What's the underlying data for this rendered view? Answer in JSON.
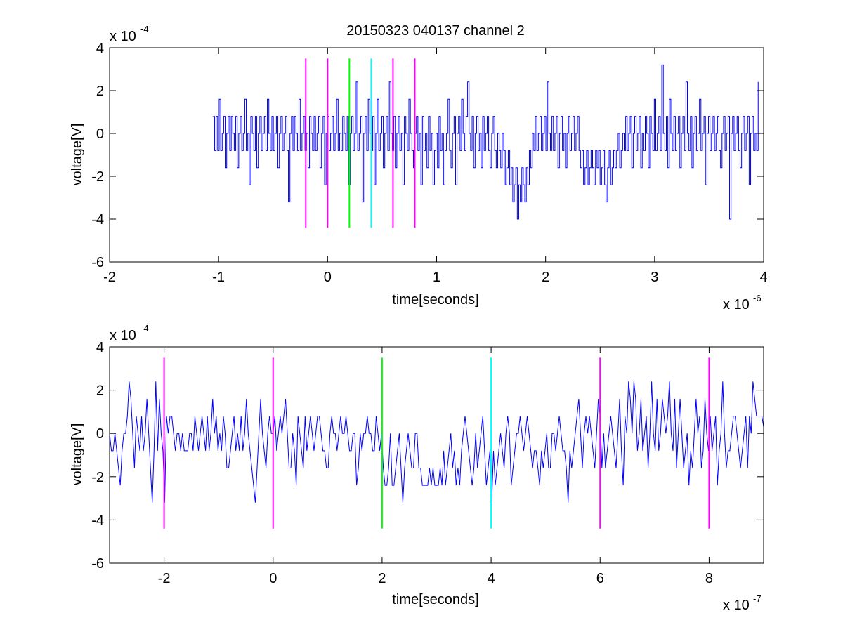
{
  "figure": {
    "title": "20150323 040137 channel 2"
  },
  "colors": {
    "trace": "#0000ff",
    "axes": "#000000",
    "magenta": "#ff00ff",
    "green": "#00ff00",
    "cyan": "#00ffff",
    "background": "#ffffff"
  },
  "chart_data": [
    {
      "type": "line",
      "title": "20150323 040137 channel 2",
      "xlabel": "time[seconds]",
      "ylabel": "voltage[V]",
      "x_exponent_label": "x 10",
      "x_exponent": "-6",
      "y_exponent_label": "x 10",
      "y_exponent": "-4",
      "x_unit_scale": 1e-06,
      "y_unit_scale": 0.0001,
      "xlim": [
        -2,
        4
      ],
      "ylim": [
        -6,
        4
      ],
      "xticks": [
        -2,
        -1,
        0,
        1,
        2,
        3,
        4
      ],
      "xtick_labels": [
        "-2",
        "-1",
        "0",
        "1",
        "2",
        "3",
        "4"
      ],
      "yticks": [
        -6,
        -4,
        -2,
        0,
        2,
        4
      ],
      "ytick_labels": [
        "-6",
        "-4",
        "-2",
        "0",
        "2",
        "4"
      ],
      "grid": false,
      "signal_x_range": [
        -1.05,
        3.95
      ],
      "markers": [
        {
          "x": -0.2,
          "color": "magenta",
          "ymin": -4.4,
          "ymax": 3.5
        },
        {
          "x": 0.0,
          "color": "magenta",
          "ymin": -4.4,
          "ymax": 3.5
        },
        {
          "x": 0.2,
          "color": "green",
          "ymin": -4.4,
          "ymax": 3.5
        },
        {
          "x": 0.4,
          "color": "cyan",
          "ymin": -4.4,
          "ymax": 3.5
        },
        {
          "x": 0.6,
          "color": "magenta",
          "ymin": -4.4,
          "ymax": 3.5
        },
        {
          "x": 0.8,
          "color": "magenta",
          "ymin": -4.4,
          "ymax": 3.5
        }
      ],
      "series": [
        {
          "x_start": -1.05,
          "x_end": 3.95,
          "values": [
            0.8,
            -0.8,
            0.8,
            -0.8,
            1.6,
            -0.8,
            0,
            0.8,
            -1.6,
            0,
            0.8,
            -0.8,
            0.8,
            0,
            -0.8,
            0.8,
            -1.6,
            0,
            0.8,
            -0.8,
            0,
            1.6,
            -0.8,
            0,
            -2.4,
            0.8,
            0,
            -0.8,
            0.8,
            -1.6,
            0,
            0.8,
            -0.8,
            0,
            0.8,
            -0.8,
            1.6,
            0,
            -0.8,
            0.8,
            -0.8,
            0,
            0.8,
            -1.6,
            0,
            0.8,
            -0.8,
            0,
            0.8,
            -0.8,
            -3.2,
            0,
            0.8,
            -0.8,
            0.8,
            0,
            -0.8,
            1.6,
            -0.8,
            0,
            0.8,
            -0.8,
            0,
            -1.6,
            0.8,
            0,
            -0.8,
            0.8,
            -0.8,
            0,
            0.8,
            -1.6,
            0,
            0.8,
            -2.4,
            0,
            0.8,
            -0.8,
            0,
            0.8,
            -0.8,
            0,
            1.6,
            -0.8,
            0,
            -0.8,
            0.8,
            0,
            -0.8,
            0.8,
            -2.4,
            0,
            0.8,
            -0.8,
            0,
            2.4,
            -0.8,
            0,
            0.8,
            -3.2,
            0,
            0.8,
            -0.8,
            1.6,
            0,
            -0.8,
            0.8,
            -2.4,
            0,
            1.6,
            -0.8,
            0,
            0.8,
            -1.6,
            0,
            0.8,
            -0.8,
            2.4,
            0,
            -0.8,
            0.8,
            -1.6,
            0,
            0.8,
            -0.8,
            0,
            -2.4,
            0.8,
            0,
            -0.8,
            1.6,
            0,
            -0.8,
            -1.6,
            0,
            0.8,
            -0.8,
            0,
            -2.4,
            0.8,
            -0.8,
            0,
            -1.6,
            0.8,
            -0.8,
            0,
            -2.4,
            -0.8,
            0,
            -1.6,
            0.8,
            -0.8,
            0,
            -2.4,
            -0.8,
            0,
            1.6,
            -0.8,
            -1.6,
            0,
            0.8,
            -2.4,
            0,
            0.8,
            -0.8,
            1.6,
            0,
            -0.8,
            0.8,
            2.4,
            0,
            -0.8,
            0.8,
            -1.6,
            0,
            0.8,
            -0.8,
            0,
            -1.6,
            0.8,
            -0.8,
            0,
            0.8,
            -0.8,
            -1.6,
            0,
            0.8,
            -0.8,
            -1.6,
            0,
            -0.8,
            -1.6,
            0,
            -0.8,
            -2.4,
            -1.6,
            -0.8,
            -2.4,
            -1.6,
            -3.2,
            -2.4,
            -1.6,
            -4.0,
            -2.4,
            -3.2,
            -1.6,
            -2.4,
            -3.2,
            -1.6,
            -2.4,
            -0.8,
            -1.6,
            0,
            -0.8,
            0.8,
            -0.8,
            0,
            0.8,
            -0.8,
            0,
            0.8,
            -0.8,
            2.4,
            0,
            -0.8,
            0.8,
            -0.8,
            0,
            0.8,
            -1.6,
            0,
            0.8,
            -0.8,
            0,
            -1.6,
            0,
            0.8,
            -0.8,
            0,
            0.8,
            -0.8,
            0,
            0.8,
            -0.8,
            -1.6,
            -0.8,
            -2.4,
            -1.6,
            -0.8,
            -2.4,
            -1.6,
            -0.8,
            -1.6,
            -2.4,
            -0.8,
            -1.6,
            -0.8,
            -2.4,
            -1.6,
            -0.8,
            -2.4,
            -3.2,
            -1.6,
            -0.8,
            -2.4,
            -1.6,
            -0.8,
            -1.6,
            -0.8,
            0,
            -1.6,
            -0.8,
            0,
            -0.8,
            0.8,
            -0.8,
            0,
            0.8,
            -1.6,
            0,
            0.8,
            -0.8,
            0,
            0.8,
            -1.6,
            0,
            -0.8,
            0.8,
            0,
            -1.6,
            0.8,
            0,
            -0.8,
            1.6,
            -0.8,
            0,
            0.8,
            -0.8,
            3.2,
            0,
            -0.8,
            0.8,
            -1.6,
            1.6,
            0,
            -0.8,
            0.8,
            -0.8,
            0,
            0.8,
            -1.6,
            0,
            0.8,
            -0.8,
            2.4,
            0,
            -0.8,
            0.8,
            -1.6,
            0,
            0.8,
            -0.8,
            0,
            1.6,
            -0.8,
            0,
            0.8,
            -2.4,
            0,
            0.8,
            -0.8,
            0,
            0.8,
            -0.8,
            0,
            0.8,
            -0.8,
            -1.6,
            0,
            0.8,
            -0.8,
            0,
            0.8,
            -4.0,
            0,
            0.8,
            -0.8,
            0,
            0.8,
            -0.8,
            -1.6,
            0,
            0.8,
            -0.8,
            0,
            0.8,
            -2.4,
            0,
            0.8,
            -0.8,
            0,
            -0.8,
            2.4
          ]
        }
      ]
    },
    {
      "type": "line",
      "title": "",
      "xlabel": "time[seconds]",
      "ylabel": "voltage[V]",
      "x_exponent_label": "x 10",
      "x_exponent": "-7",
      "y_exponent_label": "x 10",
      "y_exponent": "-4",
      "x_unit_scale": 1e-07,
      "y_unit_scale": 0.0001,
      "xlim": [
        -3,
        9
      ],
      "ylim": [
        -6,
        4
      ],
      "xticks": [
        -2,
        0,
        2,
        4,
        6,
        8
      ],
      "xtick_labels": [
        "-2",
        "0",
        "2",
        "4",
        "6",
        "8"
      ],
      "yticks": [
        -6,
        -4,
        -2,
        0,
        2,
        4
      ],
      "ytick_labels": [
        "-6",
        "-4",
        "-2",
        "0",
        "2",
        "4"
      ],
      "grid": false,
      "signal_x_range": [
        -3,
        9
      ],
      "markers": [
        {
          "x": -2,
          "color": "magenta",
          "ymin": -4.4,
          "ymax": 3.5
        },
        {
          "x": 0,
          "color": "magenta",
          "ymin": -4.4,
          "ymax": 3.5
        },
        {
          "x": 2,
          "color": "green",
          "ymin": -4.4,
          "ymax": 3.5
        },
        {
          "x": 4,
          "color": "cyan",
          "ymin": -4.4,
          "ymax": 3.5
        },
        {
          "x": 6,
          "color": "magenta",
          "ymin": -4.4,
          "ymax": 3.5
        },
        {
          "x": 8,
          "color": "magenta",
          "ymin": -4.4,
          "ymax": 3.5
        }
      ],
      "series": [
        {
          "x_start": -3,
          "x_end": 9,
          "values": [
            0,
            -0.8,
            -0.8,
            0,
            -0.8,
            -1.6,
            -2.4,
            -0.8,
            0,
            0,
            0.8,
            2.4,
            1.6,
            0,
            -1.6,
            0.8,
            0,
            -0.8,
            0.8,
            -0.8,
            0,
            1.6,
            0,
            -1.6,
            -3.2,
            -0.8,
            2.4,
            -0.8,
            1.6,
            0,
            -0.8,
            -3.2,
            0.8,
            0,
            0.8,
            0.8,
            0,
            -0.8,
            0,
            0,
            -0.8,
            0,
            -0.8,
            -0.8,
            -0.8,
            0,
            0,
            -0.8,
            0.8,
            0,
            -0.8,
            0,
            0.8,
            0,
            -0.8,
            0.8,
            -0.8,
            0,
            1.6,
            0,
            0.8,
            -0.8,
            0,
            -0.8,
            0.8,
            0,
            -1.6,
            -1.6,
            -0.8,
            0,
            0.8,
            -0.8,
            0,
            -0.8,
            0.8,
            -0.8,
            0,
            1.6,
            0,
            -0.8,
            -1.6,
            -2.4,
            -3.2,
            -1.6,
            0,
            1.6,
            0,
            -0.8,
            -1.6,
            0,
            0.8,
            0,
            0,
            0.8,
            -0.8,
            0,
            0.8,
            0,
            0.8,
            1.6,
            0,
            -1.6,
            -1.6,
            0,
            -0.8,
            -2.4,
            0.8,
            0,
            -0.8,
            -1.6,
            0.8,
            -0.8,
            0,
            0.8,
            0,
            -0.8,
            0,
            0.8,
            0.8,
            0,
            -0.8,
            -0.8,
            -1.6,
            -1.6,
            0,
            0.8,
            0,
            0,
            -0.8,
            0,
            0.8,
            0,
            0,
            0.8,
            0,
            -0.8,
            -0.8,
            0,
            0,
            -2.4,
            -1.6,
            0,
            -0.8,
            0,
            0,
            0.8,
            0,
            0,
            -0.8,
            -0.8,
            0.8,
            0,
            -0.8,
            0,
            -1.6,
            -2.4,
            -2.4,
            -1.6,
            0,
            -2.4,
            -2.4,
            -1.6,
            -0.8,
            0,
            -1.6,
            -3.2,
            -1.6,
            -0.8,
            0,
            -0.8,
            -1.6,
            -1.6,
            0,
            0,
            -1.6,
            -1.6,
            -2.4,
            -2.4,
            -2.4,
            -2.4,
            -1.6,
            -2.4,
            -1.6,
            -2.4,
            -2.4,
            -2.4,
            -1.6,
            -2.4,
            -0.8,
            -2.4,
            -1.6,
            -0.8,
            0,
            -1.6,
            -0.8,
            -2.4,
            -1.6,
            -2.4,
            -0.8,
            0,
            0.8,
            0,
            -0.8,
            -1.6,
            -2.4,
            -1.6,
            0,
            -1.6,
            -0.8,
            0,
            0.8,
            -0.8,
            -2.4,
            -1.6,
            -0.8,
            -3.2,
            -0.8,
            -2.4,
            -1.6,
            -0.8,
            0,
            -0.8,
            -1.6,
            0,
            0.8,
            0,
            -2.4,
            -1.6,
            -0.8,
            0,
            0,
            0.8,
            0,
            -0.8,
            0,
            0.8,
            0,
            -0.8,
            -1.6,
            -0.8,
            -0.8,
            -1.6,
            -2.4,
            -0.8,
            -1.6,
            -0.8,
            0,
            -1.6,
            -1.6,
            0,
            0,
            -0.8,
            0,
            0.8,
            0,
            -0.8,
            -0.8,
            -1.6,
            -3.2,
            -0.8,
            -1.6,
            -0.8,
            0,
            0.8,
            1.6,
            0,
            -1.6,
            0,
            0.8,
            0,
            0.8,
            0,
            -0.8,
            -1.6,
            0,
            1.6,
            0.8,
            -1.6,
            0,
            -1.6,
            -0.8,
            0,
            0.8,
            0,
            -0.8,
            -1.6,
            0,
            1.6,
            -0.8,
            -2.4,
            0.8,
            0,
            2.4,
            1.6,
            0,
            2.4,
            1.6,
            -0.8,
            0,
            1.6,
            -0.8,
            0,
            0.8,
            -1.6,
            0,
            2.4,
            0,
            -0.8,
            1.6,
            -0.8,
            0,
            1.6,
            0.8,
            0,
            0.8,
            2.4,
            0,
            -0.8,
            1.6,
            -1.6,
            0,
            1.6,
            0,
            -1.6,
            -0.8,
            0,
            -2.4,
            -0.8,
            -1.6,
            0,
            1.6,
            0,
            0.8,
            -1.6,
            -0.8,
            1.6,
            0,
            -0.8,
            0.8,
            -0.8,
            0,
            0.8,
            -2.4,
            -0.8,
            0,
            2.4,
            0,
            -1.6,
            -0.8,
            -0.8,
            0,
            0.8,
            0.8,
            0,
            -0.8,
            -1.6,
            -0.8,
            0,
            0.8,
            -1.6,
            0.8,
            0,
            2.4,
            1.6,
            0.8,
            0.8,
            0.8,
            0.8,
            0.3
          ]
        }
      ]
    }
  ]
}
